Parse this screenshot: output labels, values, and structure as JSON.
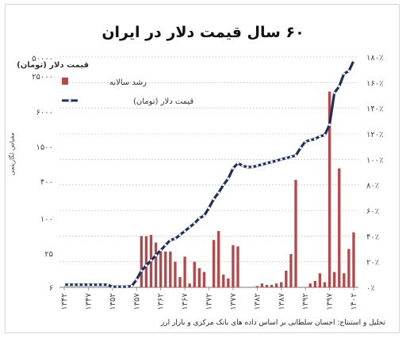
{
  "page_title": "۶۰ سال قیمت دلار در ایران",
  "footer": "تحلیل و استنتاج: احسان سلطانی بر اساس داده های بانک مرکزی و بازار ارز",
  "chart_data": {
    "type": "bar+line",
    "title": "۶۰ سال قیمت دلار در ایران",
    "left_axis_title": "مقیاس لگاریتمی",
    "left_ticks": [
      "۶",
      "۲۵",
      "۱۰۰",
      "۴۰۰",
      "۱۵۰۰",
      "۶۰۰۰",
      "۲۵۰۰۰",
      "۵۰۰۰۰"
    ],
    "right_ticks": [
      "۰٪",
      "۲۰٪",
      "۴۰٪",
      "۶۰٪",
      "۸۰٪",
      "۱۰۰٪",
      "۱۲۰٪",
      "۱۴۰٪",
      "۱۶۰٪",
      "۱۸۰٪"
    ],
    "right_range": [
      0,
      180
    ],
    "x_tick_labels": [
      "۱۳۴۲",
      "۱۳۴۷",
      "۱۳۵۲",
      "۱۳۵۷",
      "۱۳۶۲",
      "۱۳۶۷",
      "۱۳۷۲",
      "۱۳۷۷",
      "۱۳۸۲",
      "۱۳۸۷",
      "۱۳۹۲",
      "۱۳۹۷",
      "۱۴۰۲"
    ],
    "x_tick_years": [
      1342,
      1347,
      1352,
      1357,
      1362,
      1367,
      1372,
      1377,
      1382,
      1387,
      1392,
      1397,
      1402
    ],
    "years": [
      1342,
      1343,
      1344,
      1345,
      1346,
      1347,
      1348,
      1349,
      1350,
      1351,
      1352,
      1353,
      1354,
      1355,
      1356,
      1357,
      1358,
      1359,
      1360,
      1361,
      1362,
      1363,
      1364,
      1365,
      1366,
      1367,
      1368,
      1369,
      1370,
      1371,
      1372,
      1373,
      1374,
      1375,
      1376,
      1377,
      1378,
      1379,
      1380,
      1381,
      1382,
      1383,
      1384,
      1385,
      1386,
      1387,
      1388,
      1389,
      1390,
      1391,
      1392,
      1393,
      1394,
      1395,
      1396,
      1397,
      1398,
      1399,
      1400,
      1401,
      1402
    ],
    "series": [
      {
        "name": "رشد سالانه",
        "type": "bar",
        "axis": "right",
        "color": "#b5484a",
        "values": [
          0,
          0,
          0,
          0,
          0,
          0,
          0,
          0,
          0,
          0,
          0,
          0,
          0,
          0,
          0,
          0,
          40,
          40,
          41,
          35,
          28,
          28,
          28,
          20,
          8,
          24,
          3,
          20,
          15,
          12,
          0,
          37,
          44,
          10,
          7,
          33,
          32,
          0,
          0,
          0,
          1,
          3,
          2,
          2,
          3,
          4,
          13,
          26,
          84,
          0,
          0,
          3,
          5,
          11,
          4,
          153,
          12,
          93,
          11,
          30,
          43
        ]
      },
      {
        "name": "قیمت دلار (تومان)",
        "type": "line",
        "axis": "right",
        "color": "#1f2f5b",
        "marker_color": "#ffffff",
        "values": [
          2,
          2,
          2,
          2,
          2,
          2,
          2,
          2,
          2,
          2,
          0.5,
          0.5,
          0.5,
          0.5,
          1,
          6,
          13,
          17,
          21,
          25,
          29,
          33,
          37,
          38,
          41,
          44,
          47,
          50,
          54,
          56,
          62,
          69,
          74,
          80,
          85,
          93,
          97,
          95,
          94,
          94,
          95,
          96,
          97,
          98,
          99,
          100,
          101,
          102,
          103,
          109,
          114,
          115,
          116,
          118,
          119,
          127,
          152,
          157,
          167,
          169,
          177
        ]
      }
    ],
    "legend_title": "قیمت دلار (تومان)",
    "grid": true,
    "legend_position": "top-left"
  }
}
